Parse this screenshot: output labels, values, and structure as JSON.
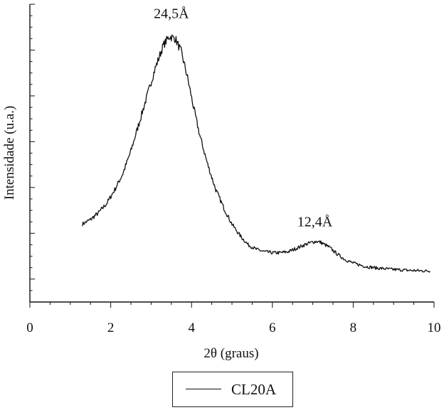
{
  "chart_data": {
    "type": "line",
    "title": "",
    "xlabel": "2θ (graus)",
    "ylabel": "Intensidade (u.a.)",
    "xlim": [
      0,
      10
    ],
    "ylim": [
      0,
      13
    ],
    "x_ticks": [
      0,
      2,
      4,
      6,
      8,
      10
    ],
    "x_tick_labels": [
      "0",
      "2",
      "4",
      "6",
      "8",
      "10"
    ],
    "y_tick_labels_shown": false,
    "grid": false,
    "legend_position": "bottom-center",
    "series": [
      {
        "name": "CL20A",
        "color": "#111111",
        "x": [
          1.3,
          1.5,
          1.7,
          1.9,
          2.1,
          2.3,
          2.5,
          2.7,
          2.9,
          3.1,
          3.3,
          3.45,
          3.6,
          3.75,
          3.9,
          4.05,
          4.2,
          4.4,
          4.6,
          4.8,
          5.0,
          5.2,
          5.4,
          5.6,
          5.8,
          6.0,
          6.2,
          6.4,
          6.6,
          6.8,
          7.0,
          7.1,
          7.2,
          7.4,
          7.6,
          7.8,
          8.0,
          8.3,
          8.6,
          9.0,
          9.4,
          9.9
        ],
        "y": [
          3.4,
          3.6,
          3.9,
          4.3,
          4.9,
          5.6,
          6.6,
          7.8,
          9.0,
          10.2,
          11.2,
          11.6,
          11.5,
          10.9,
          9.8,
          8.5,
          7.3,
          6.0,
          4.9,
          4.1,
          3.4,
          2.9,
          2.5,
          2.3,
          2.2,
          2.15,
          2.15,
          2.2,
          2.35,
          2.5,
          2.62,
          2.65,
          2.6,
          2.4,
          2.1,
          1.85,
          1.7,
          1.55,
          1.48,
          1.42,
          1.38,
          1.35
        ]
      }
    ],
    "annotations": [
      {
        "text": "24,5Å",
        "x": 3.5,
        "y": 12.4
      },
      {
        "text": "12,4Å",
        "x": 7.05,
        "y": 3.3
      }
    ]
  },
  "legend": {
    "label": "CL20A"
  }
}
